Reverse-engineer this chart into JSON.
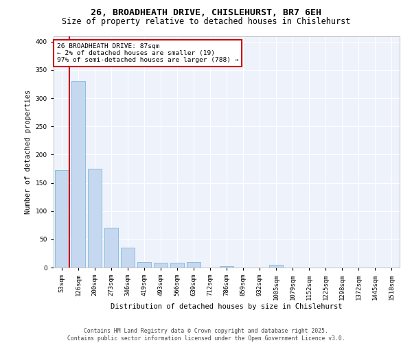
{
  "title1": "26, BROADHEATH DRIVE, CHISLEHURST, BR7 6EH",
  "title2": "Size of property relative to detached houses in Chislehurst",
  "xlabel": "Distribution of detached houses by size in Chislehurst",
  "ylabel": "Number of detached properties",
  "categories": [
    "53sqm",
    "126sqm",
    "200sqm",
    "273sqm",
    "346sqm",
    "419sqm",
    "493sqm",
    "566sqm",
    "639sqm",
    "712sqm",
    "786sqm",
    "859sqm",
    "932sqm",
    "1005sqm",
    "1079sqm",
    "1152sqm",
    "1225sqm",
    "1298sqm",
    "1372sqm",
    "1445sqm",
    "1518sqm"
  ],
  "values": [
    173,
    330,
    175,
    70,
    35,
    10,
    9,
    9,
    10,
    0,
    3,
    0,
    0,
    5,
    0,
    0,
    0,
    0,
    0,
    0,
    0
  ],
  "bar_color": "#c5d8f0",
  "bar_edge_color": "#6aaed6",
  "annotation_title": "26 BROADHEATH DRIVE: 87sqm",
  "annotation_line1": "← 2% of detached houses are smaller (19)",
  "annotation_line2": "97% of semi-detached houses are larger (788) →",
  "annotation_box_color": "#ffffff",
  "annotation_box_edge": "#cc0000",
  "vline_color": "#cc0000",
  "vline_x_data": 0.46,
  "ylim": [
    0,
    410
  ],
  "yticks": [
    0,
    50,
    100,
    150,
    200,
    250,
    300,
    350,
    400
  ],
  "bg_color": "#eef2fb",
  "footer1": "Contains HM Land Registry data © Crown copyright and database right 2025.",
  "footer2": "Contains public sector information licensed under the Open Government Licence v3.0.",
  "title1_fontsize": 9.5,
  "title2_fontsize": 8.5,
  "xlabel_fontsize": 7.5,
  "ylabel_fontsize": 7.5,
  "tick_fontsize": 6.5,
  "footer_fontsize": 5.8,
  "annotation_fontsize": 6.8
}
